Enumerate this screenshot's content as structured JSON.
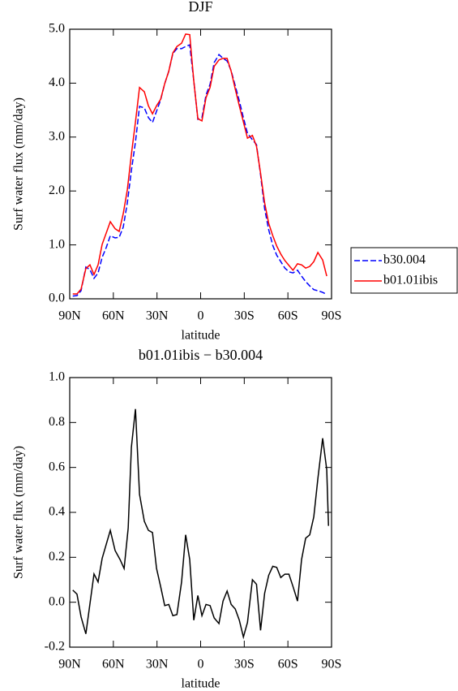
{
  "chart_data": [
    {
      "type": "line",
      "title": "DJF",
      "xlabel": "latitude",
      "ylabel": "Surf water flux (mm/day)",
      "x": [
        87.9,
        85.0,
        82.2,
        78.9,
        76.1,
        73.3,
        70.5,
        67.7,
        64.9,
        62.1,
        58.8,
        56.0,
        53.2,
        50.4,
        47.6,
        44.8,
        42.0,
        38.7,
        35.9,
        33.1,
        30.3,
        27.5,
        24.7,
        21.9,
        19.1,
        16.3,
        13.1,
        10.3,
        7.5,
        4.7,
        1.9,
        -0.9,
        -3.7,
        -6.5,
        -9.3,
        -12.6,
        -15.4,
        -18.2,
        -21.0,
        -23.8,
        -26.6,
        -29.4,
        -32.2,
        -35.6,
        -38.4,
        -41.2,
        -44.0,
        -46.8,
        -49.6,
        -52.3,
        -55.1,
        -57.9,
        -60.7,
        -63.5,
        -66.6,
        -69.4,
        -72.2,
        -75.0,
        -77.8,
        -80.6,
        -83.9,
        -86.7
      ],
      "series": [
        {
          "name": "b30.004",
          "color": "#0000ff",
          "style": "dashed",
          "values": [
            0.05,
            0.06,
            0.15,
            0.59,
            0.54,
            0.38,
            0.48,
            0.77,
            0.95,
            1.17,
            1.13,
            1.14,
            1.33,
            1.78,
            2.38,
            2.91,
            3.57,
            3.54,
            3.36,
            3.27,
            3.48,
            3.69,
            3.99,
            4.22,
            4.55,
            4.64,
            4.64,
            4.68,
            4.71,
            4.04,
            3.33,
            3.36,
            3.78,
            3.98,
            4.38,
            4.53,
            4.46,
            4.41,
            4.23,
            3.95,
            3.67,
            3.36,
            3.07,
            2.95,
            2.86,
            2.3,
            1.67,
            1.28,
            0.99,
            0.81,
            0.69,
            0.57,
            0.5,
            0.48,
            0.53,
            0.42,
            0.32,
            0.24,
            0.17,
            0.15,
            0.12,
            0.08
          ]
        },
        {
          "name": "b01.01ibis",
          "color": "#ff0000",
          "style": "solid",
          "values": [
            0.09,
            0.09,
            0.18,
            0.56,
            0.63,
            0.45,
            0.63,
            1.01,
            1.22,
            1.43,
            1.3,
            1.25,
            1.58,
            2.02,
            2.68,
            3.28,
            3.92,
            3.84,
            3.58,
            3.43,
            3.58,
            3.7,
            3.99,
            4.22,
            4.56,
            4.68,
            4.74,
            4.91,
            4.9,
            4.04,
            3.34,
            3.3,
            3.73,
            3.92,
            4.31,
            4.43,
            4.46,
            4.46,
            4.22,
            3.89,
            3.58,
            3.28,
            2.98,
            3.03,
            2.83,
            2.33,
            1.78,
            1.4,
            1.17,
            0.98,
            0.83,
            0.71,
            0.62,
            0.53,
            0.65,
            0.63,
            0.57,
            0.6,
            0.69,
            0.86,
            0.72,
            0.42
          ]
        }
      ],
      "xlim": [
        90,
        -90
      ],
      "xticks": [
        {
          "value": 90,
          "label": "90N"
        },
        {
          "value": 60,
          "label": "60N"
        },
        {
          "value": 30,
          "label": "30N"
        },
        0,
        {
          "value": -30,
          "label": "30S"
        },
        {
          "value": -60,
          "label": "60S"
        },
        {
          "value": -90,
          "label": "90S"
        }
      ],
      "ylim": [
        0,
        5
      ],
      "yticks": [
        {
          "value": 0,
          "label": "0.0"
        },
        {
          "value": 1,
          "label": "1.0"
        },
        {
          "value": 2,
          "label": "2.0"
        },
        {
          "value": 3,
          "label": "3.0"
        },
        {
          "value": 4,
          "label": "4.0"
        },
        {
          "value": 5,
          "label": "5.0"
        }
      ],
      "legend": "right"
    },
    {
      "type": "line",
      "title": "b01.01ibis − b30.004",
      "xlabel": "latitude",
      "ylabel": "Surf water flux (mm/day)",
      "x": [
        87.9,
        85.0,
        82.2,
        78.9,
        73.3,
        70.5,
        67.7,
        62.1,
        58.8,
        55.4,
        52.6,
        49.8,
        47.6,
        44.8,
        42.0,
        38.7,
        35.9,
        33.1,
        30.3,
        27.5,
        24.7,
        21.9,
        19.1,
        16.3,
        13.1,
        10.3,
        7.5,
        4.7,
        1.9,
        -0.9,
        -3.7,
        -6.5,
        -9.3,
        -12.6,
        -15.4,
        -18.2,
        -21.0,
        -23.8,
        -26.6,
        -29.4,
        -32.2,
        -35.6,
        -38.4,
        -41.2,
        -44.0,
        -46.8,
        -49.6,
        -52.3,
        -55.1,
        -57.9,
        -60.7,
        -63.5,
        -66.6,
        -69.4,
        -72.2,
        -75.0,
        -77.8,
        -80.6,
        -83.9,
        -86.7,
        -87.9
      ],
      "series": [
        {
          "color": "#000000",
          "style": "solid",
          "values": [
            0.054,
            0.036,
            -0.065,
            -0.141,
            0.126,
            0.09,
            0.195,
            0.32,
            0.23,
            0.19,
            0.15,
            0.33,
            0.69,
            0.86,
            0.48,
            0.36,
            0.32,
            0.31,
            0.15,
            0.07,
            -0.015,
            -0.01,
            -0.06,
            -0.055,
            0.09,
            0.3,
            0.19,
            -0.08,
            0.03,
            -0.06,
            -0.01,
            -0.015,
            -0.07,
            -0.095,
            0.005,
            0.05,
            -0.01,
            -0.03,
            -0.08,
            -0.155,
            -0.09,
            0.1,
            0.08,
            -0.125,
            0.04,
            0.12,
            0.16,
            0.155,
            0.11,
            0.125,
            0.125,
            0.07,
            0.005,
            0.19,
            0.285,
            0.3,
            0.38,
            0.55,
            0.73,
            0.59,
            0.34
          ]
        }
      ],
      "xlim": [
        90,
        -90
      ],
      "xticks": [
        {
          "value": 90,
          "label": "90N"
        },
        {
          "value": 60,
          "label": "60N"
        },
        {
          "value": 30,
          "label": "30N"
        },
        0,
        {
          "value": -30,
          "label": "30S"
        },
        {
          "value": -60,
          "label": "60S"
        },
        {
          "value": -90,
          "label": "90S"
        }
      ],
      "ylim": [
        -0.2,
        1.0
      ],
      "yticks": [
        -0.2,
        {
          "value": 0,
          "label": "0.0"
        },
        0.2,
        0.4,
        0.6,
        0.8,
        {
          "value": 1,
          "label": "1.0"
        }
      ]
    }
  ]
}
